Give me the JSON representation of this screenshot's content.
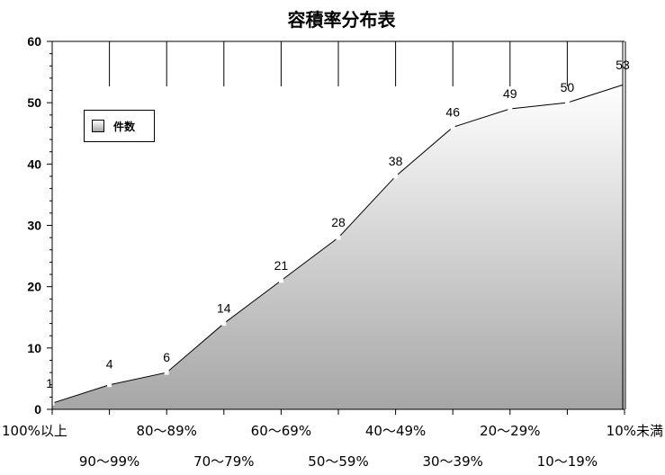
{
  "chart_data": {
    "type": "area",
    "title": "容積率分布表",
    "categories": [
      "100%以上",
      "90〜99%",
      "80〜89%",
      "70〜79%",
      "60〜69%",
      "50〜59%",
      "40〜49%",
      "30〜39%",
      "20〜29%",
      "10〜19%",
      "10%未満"
    ],
    "series": [
      {
        "name": "件数",
        "values": [
          1,
          4,
          6,
          14,
          21,
          28,
          38,
          46,
          49,
          50,
          53
        ]
      }
    ],
    "ylim": [
      0,
      60
    ],
    "yticks": [
      0,
      10,
      20,
      30,
      40,
      50,
      60
    ],
    "grid": false,
    "legend": "top-left",
    "colors": {
      "fill_top": "#ffffff",
      "fill_bottom": "#a6a6a6",
      "line": "#000000"
    }
  }
}
